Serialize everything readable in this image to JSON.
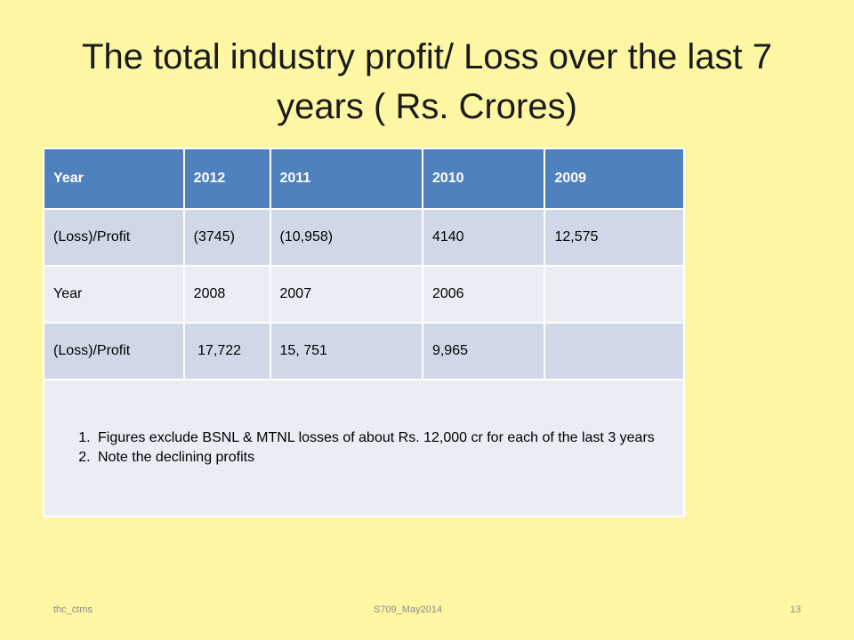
{
  "slide": {
    "title": "The total  industry profit/ Loss over the last 7 years ( Rs. Crores)"
  },
  "table": {
    "rows": [
      [
        "Year",
        "2012",
        "2011",
        "2010",
        "2009"
      ],
      [
        "(Loss)/Profit",
        "(3745)",
        "(10,958)",
        "4140",
        "12,575"
      ],
      [
        "Year",
        "2008",
        "2007",
        "2006",
        ""
      ],
      [
        "(Loss)/Profit",
        " 17,722",
        "15, 751",
        "9,965",
        ""
      ]
    ],
    "notes": [
      "Figures exclude BSNL & MTNL losses of  about Rs. 12,000 cr for each of the  last 3 years",
      "Note the declining profits"
    ]
  },
  "footer": {
    "left": "thc_ctms",
    "center": "S709_May2014",
    "page_number": "13"
  },
  "colors": {
    "background": "#fdf6a3",
    "header_row": "#4f81bd",
    "band_dark": "#d0d8e8",
    "band_light": "#e9edf4"
  }
}
